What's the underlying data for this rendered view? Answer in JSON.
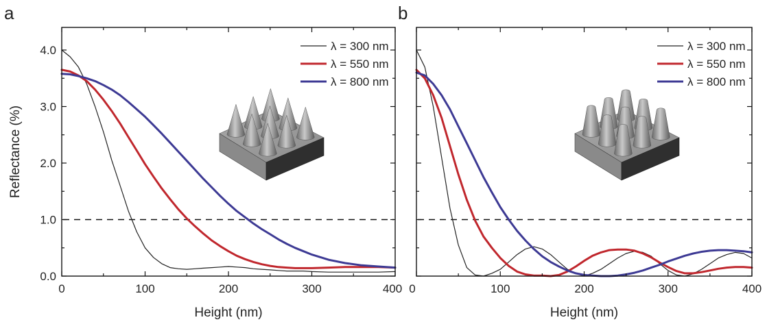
{
  "figure": {
    "panel_a_label": "a",
    "panel_b_label": "b",
    "ylabel": "Reflectance (%)",
    "xlabel": "Height (nm)"
  },
  "chart_data": [
    {
      "type": "line",
      "panel": "a",
      "title": "",
      "xlabel": "Height (nm)",
      "ylabel": "Reflectance (%)",
      "xlim": [
        0,
        400
      ],
      "ylim": [
        0,
        4.4
      ],
      "x_ticks": [
        "0",
        "100",
        "200",
        "300",
        "400"
      ],
      "y_ticks": [
        "0.0",
        "1.0",
        "2.0",
        "3.0",
        "4.0"
      ],
      "grid": false,
      "legend_position": "top-right",
      "reference_line": {
        "y": 1.0,
        "style": "dashed"
      },
      "inset": "cone array on substrate",
      "series": [
        {
          "name": "λ = 300 nm",
          "color": "#222222",
          "x": [
            0,
            10,
            20,
            30,
            40,
            50,
            60,
            70,
            80,
            90,
            100,
            110,
            120,
            130,
            140,
            150,
            160,
            170,
            180,
            190,
            200,
            210,
            220,
            230,
            240,
            250,
            260,
            270,
            280,
            290,
            300,
            320,
            340,
            360,
            380,
            400
          ],
          "y": [
            4.0,
            3.88,
            3.7,
            3.4,
            3.0,
            2.55,
            2.05,
            1.6,
            1.15,
            0.78,
            0.5,
            0.33,
            0.22,
            0.15,
            0.13,
            0.12,
            0.13,
            0.14,
            0.15,
            0.16,
            0.17,
            0.16,
            0.15,
            0.13,
            0.12,
            0.11,
            0.1,
            0.09,
            0.09,
            0.09,
            0.08,
            0.07,
            0.07,
            0.07,
            0.07,
            0.08
          ]
        },
        {
          "name": "λ = 550 nm",
          "color": "#c0272d",
          "x": [
            0,
            10,
            20,
            30,
            40,
            50,
            60,
            70,
            80,
            90,
            100,
            110,
            120,
            130,
            140,
            150,
            160,
            170,
            180,
            190,
            200,
            210,
            220,
            230,
            240,
            250,
            260,
            270,
            280,
            290,
            300,
            320,
            340,
            360,
            380,
            400
          ],
          "y": [
            3.65,
            3.62,
            3.55,
            3.45,
            3.3,
            3.12,
            2.92,
            2.7,
            2.46,
            2.22,
            1.98,
            1.76,
            1.55,
            1.36,
            1.18,
            1.02,
            0.88,
            0.75,
            0.63,
            0.53,
            0.44,
            0.36,
            0.3,
            0.25,
            0.21,
            0.18,
            0.16,
            0.15,
            0.14,
            0.14,
            0.14,
            0.15,
            0.16,
            0.16,
            0.16,
            0.15
          ]
        },
        {
          "name": "λ = 800 nm",
          "color": "#3d3a94",
          "x": [
            0,
            10,
            20,
            30,
            40,
            50,
            60,
            70,
            80,
            90,
            100,
            110,
            120,
            130,
            140,
            150,
            160,
            170,
            180,
            190,
            200,
            210,
            220,
            230,
            240,
            250,
            260,
            270,
            280,
            290,
            300,
            320,
            340,
            360,
            380,
            400
          ],
          "y": [
            3.58,
            3.57,
            3.54,
            3.5,
            3.45,
            3.38,
            3.3,
            3.2,
            3.08,
            2.95,
            2.82,
            2.67,
            2.52,
            2.36,
            2.2,
            2.04,
            1.88,
            1.72,
            1.57,
            1.42,
            1.28,
            1.15,
            1.04,
            0.93,
            0.83,
            0.74,
            0.65,
            0.57,
            0.5,
            0.44,
            0.38,
            0.29,
            0.23,
            0.19,
            0.17,
            0.15
          ]
        }
      ]
    },
    {
      "type": "line",
      "panel": "b",
      "title": "",
      "xlabel": "Height (nm)",
      "ylabel": "",
      "xlim": [
        0,
        400
      ],
      "ylim": [
        0,
        4.4
      ],
      "x_ticks": [
        "0",
        "100",
        "200",
        "300",
        "400"
      ],
      "y_ticks": [],
      "grid": false,
      "legend_position": "top-right",
      "reference_line": {
        "y": 1.0,
        "style": "dashed"
      },
      "inset": "truncated cone array on substrate",
      "series": [
        {
          "name": "λ = 300 nm",
          "color": "#222222",
          "x": [
            0,
            10,
            20,
            30,
            40,
            50,
            60,
            70,
            80,
            90,
            100,
            110,
            120,
            130,
            140,
            150,
            160,
            170,
            180,
            190,
            200,
            210,
            220,
            230,
            240,
            250,
            260,
            270,
            280,
            290,
            300,
            310,
            320,
            330,
            340,
            350,
            360,
            370,
            380,
            390,
            400
          ],
          "y": [
            4.0,
            3.7,
            3.0,
            2.1,
            1.2,
            0.55,
            0.15,
            0.02,
            0.0,
            0.05,
            0.12,
            0.25,
            0.38,
            0.48,
            0.52,
            0.48,
            0.38,
            0.25,
            0.12,
            0.05,
            0.0,
            0.05,
            0.12,
            0.22,
            0.32,
            0.4,
            0.44,
            0.42,
            0.35,
            0.22,
            0.1,
            0.02,
            0.0,
            0.04,
            0.12,
            0.22,
            0.32,
            0.38,
            0.42,
            0.4,
            0.32
          ]
        },
        {
          "name": "λ = 550 nm",
          "color": "#c0272d",
          "x": [
            0,
            10,
            20,
            30,
            40,
            50,
            60,
            70,
            80,
            90,
            100,
            110,
            120,
            130,
            140,
            150,
            160,
            170,
            180,
            190,
            200,
            210,
            220,
            230,
            240,
            250,
            260,
            270,
            280,
            290,
            300,
            310,
            320,
            330,
            340,
            350,
            360,
            370,
            380,
            390,
            400
          ],
          "y": [
            3.65,
            3.5,
            3.2,
            2.8,
            2.3,
            1.8,
            1.35,
            0.98,
            0.7,
            0.5,
            0.32,
            0.18,
            0.08,
            0.03,
            0.01,
            0.01,
            0.0,
            0.02,
            0.08,
            0.17,
            0.27,
            0.36,
            0.42,
            0.46,
            0.47,
            0.47,
            0.45,
            0.4,
            0.33,
            0.24,
            0.16,
            0.09,
            0.05,
            0.05,
            0.07,
            0.1,
            0.13,
            0.15,
            0.16,
            0.16,
            0.15
          ]
        },
        {
          "name": "λ = 800 nm",
          "color": "#3d3a94",
          "x": [
            0,
            10,
            20,
            30,
            40,
            50,
            60,
            70,
            80,
            90,
            100,
            110,
            120,
            130,
            140,
            150,
            160,
            170,
            180,
            190,
            200,
            210,
            220,
            230,
            240,
            250,
            260,
            270,
            280,
            290,
            300,
            310,
            320,
            330,
            340,
            350,
            360,
            370,
            380,
            390,
            400
          ],
          "y": [
            3.6,
            3.55,
            3.4,
            3.2,
            2.95,
            2.65,
            2.35,
            2.05,
            1.75,
            1.48,
            1.22,
            1.0,
            0.8,
            0.63,
            0.48,
            0.35,
            0.25,
            0.17,
            0.1,
            0.05,
            0.02,
            0.01,
            0.0,
            0.0,
            0.01,
            0.03,
            0.06,
            0.1,
            0.15,
            0.2,
            0.26,
            0.31,
            0.36,
            0.4,
            0.43,
            0.45,
            0.46,
            0.46,
            0.45,
            0.44,
            0.42
          ]
        }
      ]
    }
  ]
}
